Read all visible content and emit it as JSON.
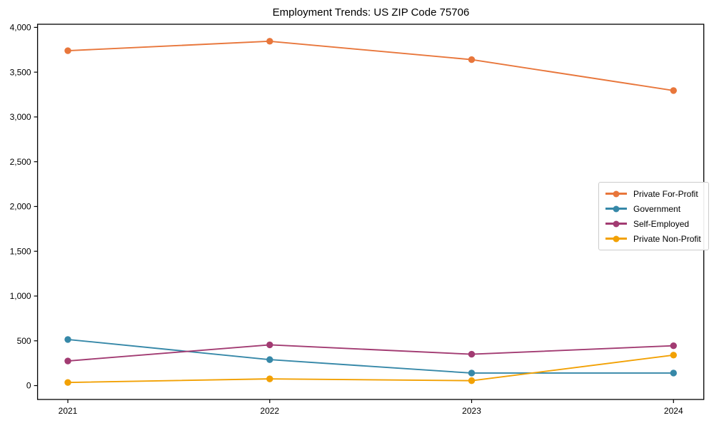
{
  "chart_data": {
    "type": "line",
    "title": "Employment Trends: US ZIP Code 75706",
    "xlabel": "",
    "ylabel": "",
    "categories": [
      "2021",
      "2022",
      "2023",
      "2024"
    ],
    "series": [
      {
        "name": "Private For-Profit",
        "color": "#E8763B",
        "values": [
          3740,
          3845,
          3640,
          3295
        ]
      },
      {
        "name": "Government",
        "color": "#3688A8",
        "values": [
          515,
          290,
          140,
          140
        ]
      },
      {
        "name": "Self-Employed",
        "color": "#A23B72",
        "values": [
          275,
          455,
          350,
          445
        ]
      },
      {
        "name": "Private Non-Profit",
        "color": "#F2A104",
        "values": [
          35,
          75,
          55,
          340
        ]
      }
    ],
    "ylim": [
      -155,
      4035
    ],
    "yticks": [
      0,
      500,
      1000,
      1500,
      2000,
      2500,
      3000,
      3500,
      4000
    ],
    "ytick_labels": [
      "0",
      "500",
      "1,000",
      "1,500",
      "2,000",
      "2,500",
      "3,000",
      "3,500",
      "4,000"
    ],
    "grid": false,
    "legend_position": "center-right",
    "marker": "circle",
    "background_color": "#ffffff",
    "axis_color": "#000000"
  }
}
